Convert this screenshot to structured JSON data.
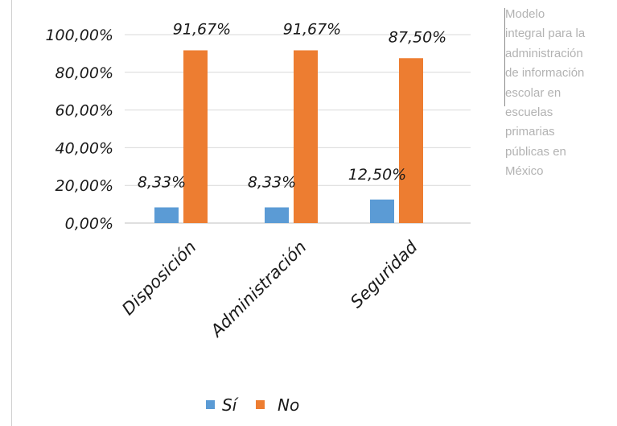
{
  "chart_data": {
    "type": "bar",
    "title": "",
    "xlabel": "",
    "ylabel": "",
    "categories": [
      "Disposición",
      "Administración",
      "Seguridad"
    ],
    "series": [
      {
        "name": "Sí",
        "color": "#5b9bd5",
        "values": [
          8.33,
          8.33,
          12.5
        ],
        "labels": [
          "8,33%",
          "8,33%",
          "12,50%"
        ]
      },
      {
        "name": "No",
        "color": "#ed7d31",
        "values": [
          91.67,
          91.67,
          87.5
        ],
        "labels": [
          "91,67%",
          "91,67%",
          "87,50%"
        ]
      }
    ],
    "ylim": [
      0,
      100
    ],
    "yticks": [
      {
        "value": 0,
        "label": "0,00%"
      },
      {
        "value": 20,
        "label": "20,00%"
      },
      {
        "value": 40,
        "label": "40,00%"
      },
      {
        "value": 60,
        "label": "60,00%"
      },
      {
        "value": 80,
        "label": "80,00%"
      },
      {
        "value": 100,
        "label": "100,00%"
      }
    ],
    "grid": true,
    "legend_position": "bottom"
  },
  "side_caption": {
    "lines": [
      "Modelo",
      "integral para la",
      "administración",
      "de información",
      "escolar en",
      "escuelas",
      "primarias",
      "públicas en",
      "México"
    ]
  }
}
